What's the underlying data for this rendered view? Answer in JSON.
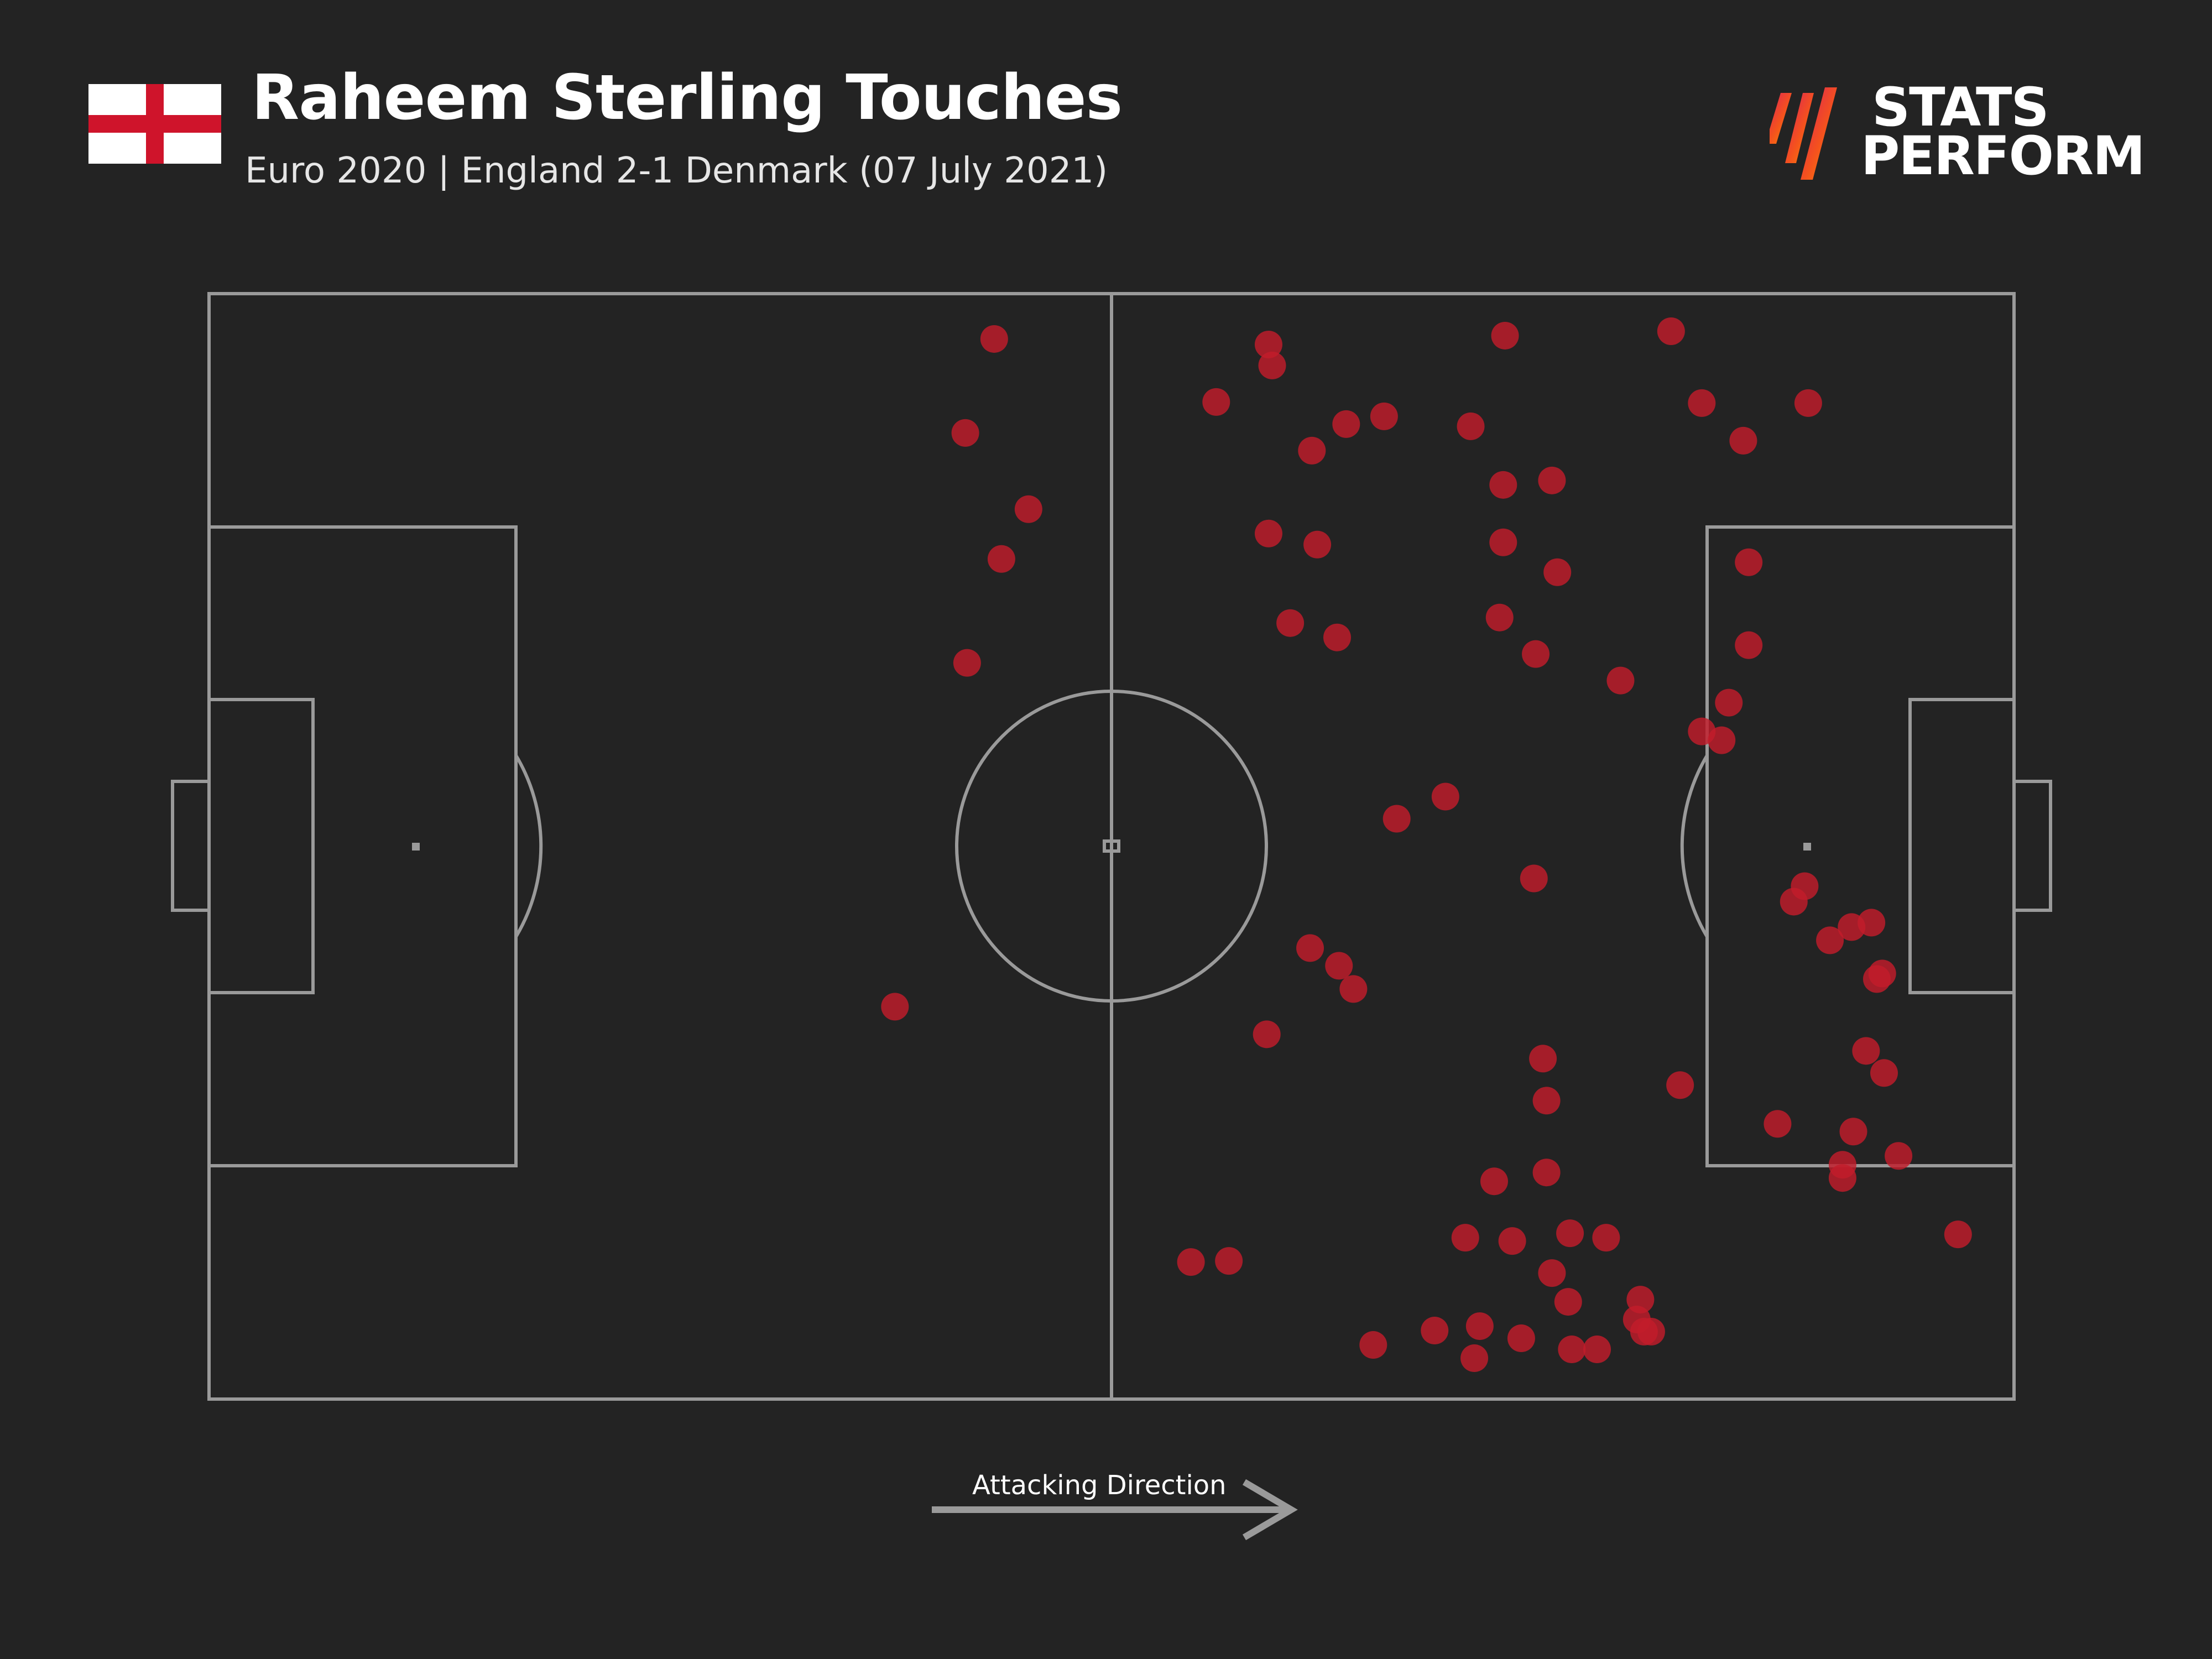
{
  "header": {
    "title": "Raheem Sterling Touches",
    "subtitle": "Euro 2020 | England 2-1 Denmark (07 July 2021)",
    "flag_name": "england-flag",
    "flag_colors": {
      "field": "#ffffff",
      "cross": "#cf142b"
    }
  },
  "brand": {
    "line1": "STATS",
    "line2": "PERFORM",
    "icon": "stats-perform-slash-icon",
    "gradient_colors": [
      "#d81b60",
      "#f4511e",
      "#fb8c00"
    ]
  },
  "footer": {
    "direction_label": "Attacking Direction",
    "arrow_icon": "right-arrow-icon"
  },
  "colors": {
    "background": "#232323",
    "pitch_lines": "#9a9a9a",
    "touch_fill": "#c21c2b"
  },
  "chart_data": {
    "type": "scatter",
    "title": "Raheem Sterling Touches",
    "subtitle": "Euro 2020 | England 2-1 Denmark (07 July 2021)",
    "xlabel": "",
    "ylabel": "",
    "xlim": [
      0,
      100
    ],
    "ylim": [
      0,
      100
    ],
    "grid": false,
    "legend": "none",
    "series": [
      {
        "points": [
          [
            43.5,
            95.9
          ],
          [
            41.9,
            87.4
          ],
          [
            45.4,
            80.5
          ],
          [
            43.9,
            76.0
          ],
          [
            42.0,
            66.6
          ],
          [
            38.0,
            35.5
          ],
          [
            55.8,
            90.2
          ],
          [
            58.7,
            95.4
          ],
          [
            58.9,
            93.5
          ],
          [
            58.7,
            78.3
          ],
          [
            61.1,
            85.8
          ],
          [
            61.4,
            77.3
          ],
          [
            63.0,
            88.2
          ],
          [
            65.1,
            88.9
          ],
          [
            81.0,
            96.6
          ],
          [
            82.7,
            90.1
          ],
          [
            85.0,
            86.7
          ],
          [
            88.6,
            90.1
          ],
          [
            69.9,
            88.0
          ],
          [
            71.8,
            96.2
          ],
          [
            71.7,
            82.7
          ],
          [
            71.7,
            77.5
          ],
          [
            74.4,
            83.1
          ],
          [
            74.7,
            74.8
          ],
          [
            71.5,
            70.7
          ],
          [
            73.5,
            67.4
          ],
          [
            59.9,
            70.2
          ],
          [
            62.5,
            68.9
          ],
          [
            84.2,
            63.0
          ],
          [
            85.3,
            75.7
          ],
          [
            85.3,
            68.2
          ],
          [
            78.2,
            65.0
          ],
          [
            83.8,
            59.6
          ],
          [
            82.7,
            60.4
          ],
          [
            65.8,
            52.5
          ],
          [
            68.5,
            54.5
          ],
          [
            73.4,
            47.1
          ],
          [
            88.4,
            46.4
          ],
          [
            87.8,
            45.0
          ],
          [
            89.8,
            41.5
          ],
          [
            92.1,
            43.1
          ],
          [
            91.0,
            42.7
          ],
          [
            92.7,
            38.5
          ],
          [
            92.4,
            38.0
          ],
          [
            61.0,
            40.8
          ],
          [
            62.6,
            39.2
          ],
          [
            63.4,
            37.1
          ],
          [
            58.6,
            33.0
          ],
          [
            73.9,
            30.8
          ],
          [
            74.1,
            27.0
          ],
          [
            81.5,
            28.4
          ],
          [
            91.8,
            31.5
          ],
          [
            92.8,
            29.5
          ],
          [
            91.1,
            24.2
          ],
          [
            93.6,
            22.0
          ],
          [
            74.1,
            20.5
          ],
          [
            71.2,
            19.7
          ],
          [
            75.4,
            15.0
          ],
          [
            72.2,
            14.3
          ],
          [
            69.6,
            14.6
          ],
          [
            77.4,
            14.6
          ],
          [
            74.4,
            11.4
          ],
          [
            79.3,
            9.0
          ],
          [
            86.9,
            24.9
          ],
          [
            90.5,
            21.2
          ],
          [
            90.5,
            20.0
          ],
          [
            96.9,
            14.9
          ],
          [
            54.4,
            12.4
          ],
          [
            56.5,
            12.5
          ],
          [
            64.5,
            4.9
          ],
          [
            67.9,
            6.2
          ],
          [
            70.4,
            6.6
          ],
          [
            70.1,
            3.7
          ],
          [
            72.7,
            5.5
          ],
          [
            75.3,
            8.8
          ],
          [
            75.5,
            4.5
          ],
          [
            76.9,
            4.5
          ],
          [
            79.1,
            7.2
          ],
          [
            79.5,
            6.1
          ],
          [
            79.9,
            6.1
          ]
        ]
      }
    ]
  }
}
